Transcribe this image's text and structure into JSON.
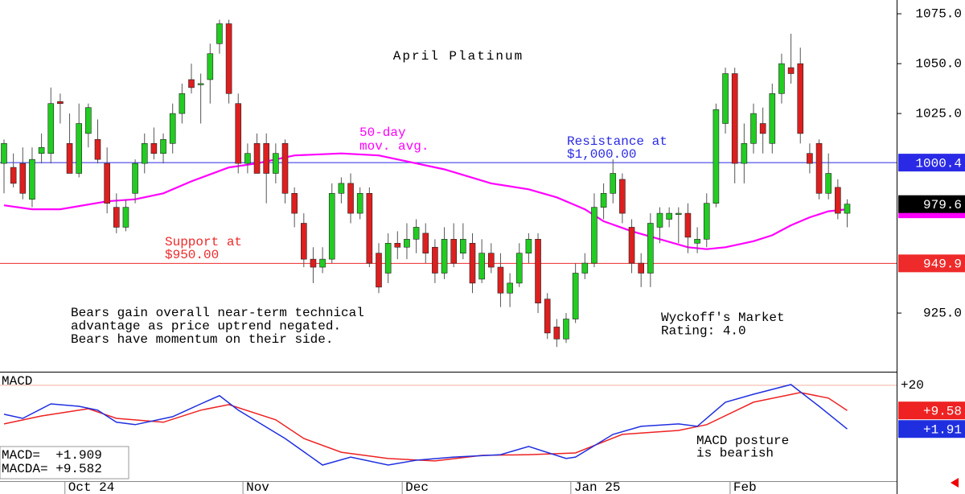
{
  "chart_data": [
    {
      "type": "candlestick",
      "title": "April Platinum",
      "categories": [
        null,
        null,
        null,
        null,
        null,
        null,
        null,
        "Oct 24",
        null,
        null,
        null,
        null,
        null,
        null,
        null,
        null,
        null,
        null,
        null,
        null,
        null,
        null,
        null,
        null,
        null,
        null,
        "Nov",
        null,
        null,
        null,
        null,
        null,
        null,
        null,
        null,
        null,
        null,
        null,
        null,
        null,
        null,
        null,
        null,
        "Dec",
        null,
        null,
        null,
        null,
        null,
        null,
        null,
        null,
        null,
        null,
        null,
        null,
        null,
        null,
        null,
        null,
        null,
        "Jan 25",
        null,
        null,
        null,
        null,
        null,
        null,
        null,
        null,
        null,
        null,
        null,
        null,
        null,
        null,
        null,
        null,
        "Feb",
        null,
        null,
        null,
        null,
        null,
        null,
        null,
        null,
        null,
        null,
        null,
        null
      ],
      "open": [
        1000,
        998,
        1000,
        982,
        1005,
        1005,
        1031,
        1010,
        995,
        1015,
        1012,
        1000,
        978,
        968,
        985,
        1000,
        1010,
        1005,
        1010,
        1025,
        1042,
        1040,
        1042,
        1060,
        1070,
        1030,
        1000,
        1010,
        1010,
        995,
        1010,
        985,
        970,
        952,
        948,
        952,
        985,
        990,
        975,
        985,
        955,
        945,
        960,
        958,
        962,
        965,
        958,
        945,
        962,
        955,
        960,
        942,
        955,
        948,
        935,
        940,
        955,
        962,
        932,
        918,
        912,
        922,
        945,
        950,
        978,
        985,
        992,
        968,
        950,
        945,
        968,
        972,
        975,
        975,
        960,
        962,
        980,
        1020,
        1045,
        1000,
        1010,
        1020,
        1010,
        1035,
        1048,
        1050,
        1005,
        1010,
        985,
        988,
        975
      ],
      "high": [
        1012,
        1005,
        1008,
        1008,
        1015,
        1038,
        1035,
        1025,
        1030,
        1030,
        1022,
        1008,
        985,
        982,
        1002,
        1015,
        1018,
        1015,
        1030,
        1040,
        1050,
        1045,
        1060,
        1072,
        1072,
        1035,
        1010,
        1015,
        1015,
        1010,
        1012,
        988,
        975,
        958,
        958,
        990,
        993,
        995,
        988,
        988,
        960,
        965,
        966,
        970,
        972,
        970,
        962,
        968,
        970,
        970,
        965,
        962,
        960,
        955,
        945,
        960,
        965,
        965,
        935,
        922,
        925,
        950,
        955,
        985,
        990,
        1002,
        995,
        972,
        955,
        975,
        978,
        978,
        978,
        980,
        968,
        985,
        1030,
        1048,
        1048,
        1020,
        1030,
        1028,
        1040,
        1055,
        1065,
        1058,
        1010,
        1012,
        1005,
        992,
        982
      ],
      "low": [
        985,
        988,
        982,
        978,
        1000,
        1000,
        1020,
        995,
        993,
        1008,
        1000,
        975,
        965,
        966,
        980,
        995,
        1002,
        1000,
        1005,
        1020,
        1035,
        1020,
        1030,
        1055,
        1030,
        995,
        995,
        995,
        980,
        990,
        980,
        968,
        948,
        940,
        945,
        950,
        980,
        970,
        972,
        948,
        935,
        940,
        952,
        952,
        955,
        950,
        940,
        942,
        948,
        952,
        935,
        940,
        945,
        928,
        928,
        938,
        950,
        925,
        912,
        908,
        910,
        920,
        942,
        948,
        972,
        980,
        970,
        945,
        938,
        938,
        960,
        968,
        960,
        955,
        955,
        958,
        978,
        1015,
        990,
        990,
        1005,
        1005,
        1005,
        1030,
        1040,
        1010,
        995,
        982,
        982,
        972,
        968
      ],
      "close": [
        1010,
        990,
        985,
        1002,
        1008,
        1030,
        1030,
        995,
        1020,
        1028,
        1002,
        980,
        968,
        978,
        1000,
        1010,
        1005,
        1012,
        1025,
        1035,
        1038,
        1040,
        1055,
        1070,
        1035,
        1000,
        1005,
        995,
        995,
        1005,
        985,
        975,
        952,
        948,
        952,
        985,
        990,
        975,
        985,
        950,
        938,
        960,
        958,
        962,
        968,
        955,
        945,
        962,
        950,
        962,
        940,
        955,
        948,
        935,
        940,
        955,
        962,
        930,
        915,
        912,
        922,
        945,
        950,
        978,
        985,
        995,
        975,
        950,
        945,
        970,
        975,
        975,
        975,
        963,
        962,
        980,
        1027,
        1045,
        1000,
        1010,
        1025,
        1015,
        1035,
        1050,
        1045,
        1015,
        1000,
        985,
        995,
        975,
        979.6
      ],
      "up_color": "#22cc22",
      "down_color": "#dd1f1f",
      "ylim": [
        895.6,
        1081.9
      ],
      "yticks": [
        {
          "value": 925,
          "label": "925.0"
        },
        {
          "value": 1025,
          "label": "1025.0"
        },
        {
          "value": 1050,
          "label": "1050.0"
        },
        {
          "value": 1075,
          "label": "1075.0"
        }
      ],
      "last_label": "979.6",
      "moving_average": {
        "label": [
          "50-day",
          "mov. avg."
        ],
        "color": "#ff00ff",
        "x": [
          0,
          3,
          6,
          11,
          14,
          17,
          20,
          24,
          27,
          31,
          36,
          40,
          43,
          47,
          52,
          56,
          59,
          62,
          64,
          67,
          70,
          73,
          75,
          77,
          80,
          82,
          84,
          86,
          88,
          90
        ],
        "values": [
          979,
          977,
          977,
          981,
          982,
          985,
          991,
          998,
          1000,
          1004,
          1005,
          1004,
          1001,
          997,
          990,
          987,
          983,
          977,
          971,
          966,
          962,
          958,
          957,
          958,
          961,
          964,
          969,
          973,
          976,
          977
        ]
      },
      "resistance": {
        "value": 1000.4,
        "label": "1000.4",
        "text": [
          "Resistance at",
          "$1,000.00"
        ],
        "color": "#2a2ae6"
      },
      "support": {
        "value": 949.9,
        "label": "949.9",
        "text": [
          "Support at",
          "$950.00"
        ],
        "color": "#ee2a2a"
      },
      "annotations": [
        [
          "Bears gain overall near-term technical",
          "advantage as price uptrend negated.",
          "Bears have momentum on their side."
        ],
        [
          "Wyckoff's Market",
          "Rating: 4.0"
        ]
      ]
    },
    {
      "type": "line",
      "title": "MACD",
      "ylim": [
        -25,
        25.3
      ],
      "yticks": [
        {
          "value": 20,
          "label": "+20"
        }
      ],
      "series": [
        {
          "color": "#1f2fe0",
          "readout": "MACD=  +1.909",
          "value_label": "+1.91",
          "x": [
            0,
            2,
            5,
            8,
            10,
            12,
            14,
            18,
            21,
            23,
            25,
            30,
            34,
            37,
            41,
            44,
            48,
            53,
            56,
            60,
            61,
            65,
            68,
            72,
            74,
            77,
            80,
            84,
            87,
            90
          ],
          "values": [
            8,
            6.3,
            12.3,
            11.3,
            9.7,
            4.7,
            3.7,
            7,
            12.3,
            15.7,
            9.7,
            -2,
            -13,
            -9.7,
            -13,
            -11,
            -9.7,
            -8.7,
            -5.3,
            -10.3,
            -9.7,
            -0.3,
            3,
            4,
            3,
            13,
            16.3,
            20.3,
            11.3,
            1.909
          ]
        },
        {
          "color": "#ee2222",
          "readout": "MACDA= +9.582",
          "value_label": "+9.58",
          "x": [
            0,
            4,
            9,
            12,
            17,
            21,
            24,
            29,
            32,
            36,
            41,
            46,
            51,
            56,
            61,
            66,
            72,
            75,
            80,
            85,
            88,
            90
          ],
          "values": [
            4,
            7.3,
            10.3,
            6.3,
            4.7,
            9.7,
            12,
            5.7,
            -2,
            -7.7,
            -10.3,
            -11.3,
            -9,
            -8.7,
            -8,
            -0.3,
            1.3,
            3.7,
            13,
            17,
            14.7,
            9.582
          ]
        }
      ],
      "annotation": [
        "MACD posture",
        "is bearish"
      ]
    }
  ]
}
